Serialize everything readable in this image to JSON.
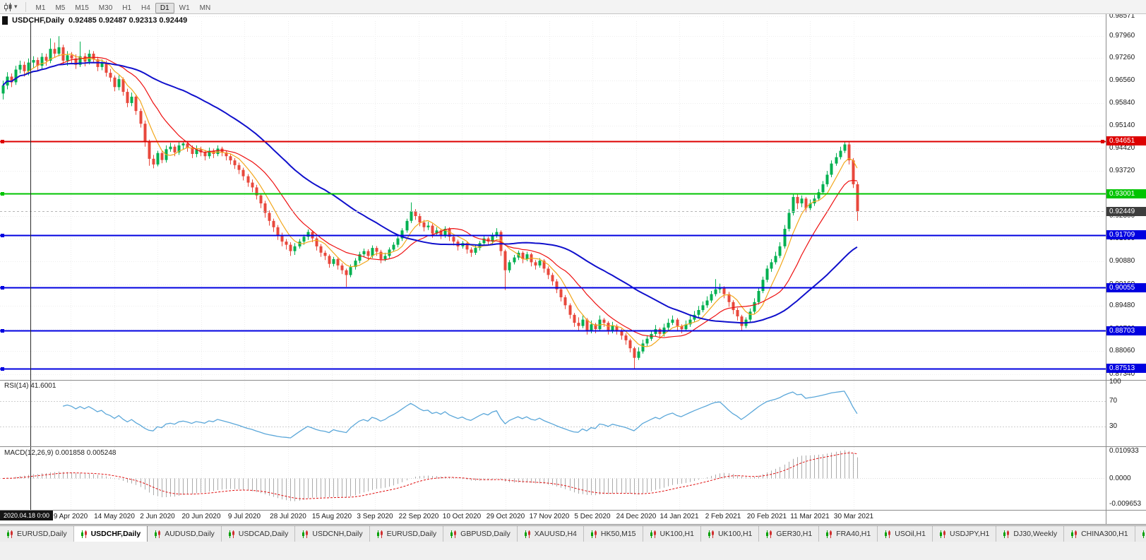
{
  "toolbar": {
    "caret_glyph": "▾",
    "timeframes": [
      "M1",
      "M5",
      "M15",
      "M30",
      "H1",
      "H4",
      "D1",
      "W1",
      "MN"
    ],
    "active_timeframe": "D1"
  },
  "chart": {
    "title_symbol": "USDCHF,Daily",
    "title_ohlc": "0.92485 0.92487 0.92313 0.92449"
  },
  "rsi": {
    "label": "RSI(14) 41.6001",
    "value": 41.6001,
    "period": 14,
    "axis_ticks": [
      "100",
      "70",
      "30"
    ],
    "levels": [
      70,
      30
    ],
    "line_color": "#5ba7d9"
  },
  "macd": {
    "label": "MACD(12,26,9) 0.001858 0.005248",
    "main_value": 0.001858,
    "signal_value": 0.005248,
    "axis_ticks": [
      "0.010933",
      "0.0000",
      "-0.009653"
    ],
    "histogram_color": "#ababab",
    "signal_color": "#e01010"
  },
  "vline": {
    "date_label": "2020.04.18 0:00"
  },
  "tabs": {
    "active_index": 1,
    "items": [
      "EURUSD,Daily",
      "USDCHF,Daily",
      "AUDUSD,Daily",
      "USDCAD,Daily",
      "USDCNH,Daily",
      "EURUSD,Daily",
      "GBPUSD,Daily",
      "XAUUSD,H4",
      "HK50,M15",
      "UK100,H1",
      "UK100,H1",
      "GER30,H1",
      "FRA40,H1",
      "USOil,H1",
      "USDJPY,H1",
      "DJ30,Weekly",
      "CHINA300,H1",
      "U"
    ]
  },
  "chart_data": {
    "type": "candlestick",
    "symbol": "USDCHF",
    "period": "Daily",
    "ohlc_display": {
      "open": "0.92485",
      "high": "0.92487",
      "low": "0.92313",
      "close": "0.92449"
    },
    "ylim": [
      0.872,
      0.9842
    ],
    "y_ticks": [
      "0.98571",
      "0.97960",
      "0.97260",
      "0.96560",
      "0.95840",
      "0.95140",
      "0.94420",
      "0.93720",
      "0.93020",
      "0.92300",
      "0.91600",
      "0.90880",
      "0.90160",
      "0.89480",
      "0.88760",
      "0.88060",
      "0.87340"
    ],
    "x_ticks": [
      "9 Apr 2020",
      "14 May 2020",
      "2 Jun 2020",
      "20 Jun 2020",
      "9 Jul 2020",
      "28 Jul 2020",
      "15 Aug 2020",
      "3 Sep 2020",
      "22 Sep 2020",
      "10 Oct 2020",
      "29 Oct 2020",
      "17 Nov 2020",
      "5 Dec 2020",
      "24 Dec 2020",
      "14 Jan 2021",
      "2 Feb 2021",
      "20 Feb 2021",
      "11 Mar 2021",
      "30 Mar 2021"
    ],
    "current_price": {
      "value": 0.92449,
      "label": "0.92449",
      "color": "#3d3d3d"
    },
    "horizontal_lines": [
      {
        "value": 0.94651,
        "label": "0.94651",
        "color": "#dd0000",
        "width": 2,
        "right_handle": true
      },
      {
        "value": 0.93001,
        "label": "0.93001",
        "color": "#00c400",
        "width": 2,
        "right_handle": false
      },
      {
        "value": 0.91709,
        "label": "0.91709",
        "color": "#0000e0",
        "width": 2,
        "right_handle": false
      },
      {
        "value": 0.90055,
        "label": "0.90055",
        "color": "#0000e0",
        "width": 2,
        "right_handle": false
      },
      {
        "value": 0.88703,
        "label": "0.88703",
        "color": "#0000e0",
        "width": 2,
        "right_handle": false
      },
      {
        "value": 0.87513,
        "label": "0.87513",
        "color": "#0000e0",
        "width": 2,
        "right_handle": false
      }
    ],
    "moving_averages": [
      {
        "name": "ma-fast",
        "period": 6,
        "color": "#f2a71b",
        "width": 1.2
      },
      {
        "name": "ma-mid",
        "period": 14,
        "color": "#ee1111",
        "width": 1.2
      },
      {
        "name": "ma-slow",
        "period": 40,
        "color": "#1010cc",
        "width": 2
      }
    ],
    "colors": {
      "up": "#00b050",
      "down": "#e8483c"
    },
    "candles": [
      [
        0.9615,
        0.9655,
        0.9596,
        0.964
      ],
      [
        0.964,
        0.9682,
        0.9628,
        0.9668
      ],
      [
        0.9668,
        0.9678,
        0.9635,
        0.965
      ],
      [
        0.965,
        0.9702,
        0.9642,
        0.969
      ],
      [
        0.969,
        0.9718,
        0.9678,
        0.9705
      ],
      [
        0.9705,
        0.9715,
        0.9668,
        0.9685
      ],
      [
        0.9685,
        0.9725,
        0.9672,
        0.9712
      ],
      [
        0.9712,
        0.9732,
        0.9695,
        0.972
      ],
      [
        0.972,
        0.9728,
        0.9688,
        0.9702
      ],
      [
        0.9702,
        0.9742,
        0.9692,
        0.973
      ],
      [
        0.973,
        0.974,
        0.9702,
        0.9718
      ],
      [
        0.9718,
        0.9788,
        0.971,
        0.9755
      ],
      [
        0.9755,
        0.9775,
        0.9728,
        0.974
      ],
      [
        0.974,
        0.9795,
        0.9732,
        0.976
      ],
      [
        0.976,
        0.9768,
        0.9705,
        0.9718
      ],
      [
        0.9718,
        0.9748,
        0.9702,
        0.9735
      ],
      [
        0.9735,
        0.9745,
        0.9708,
        0.9725
      ],
      [
        0.9725,
        0.9738,
        0.9692,
        0.9705
      ],
      [
        0.9705,
        0.9778,
        0.9698,
        0.9732
      ],
      [
        0.9732,
        0.9742,
        0.97,
        0.9715
      ],
      [
        0.9715,
        0.9752,
        0.9706,
        0.974
      ],
      [
        0.974,
        0.9748,
        0.971,
        0.9722
      ],
      [
        0.9722,
        0.973,
        0.9685,
        0.9698
      ],
      [
        0.9698,
        0.9722,
        0.9688,
        0.9712
      ],
      [
        0.9712,
        0.9718,
        0.9668,
        0.968
      ],
      [
        0.968,
        0.9692,
        0.9652,
        0.9665
      ],
      [
        0.9665,
        0.9672,
        0.9622,
        0.9635
      ],
      [
        0.9635,
        0.9672,
        0.9625,
        0.966
      ],
      [
        0.966,
        0.9665,
        0.9608,
        0.962
      ],
      [
        0.962,
        0.963,
        0.9572,
        0.9585
      ],
      [
        0.9585,
        0.9618,
        0.9575,
        0.9605
      ],
      [
        0.9605,
        0.9612,
        0.9548,
        0.956
      ],
      [
        0.956,
        0.9568,
        0.9508,
        0.952
      ],
      [
        0.952,
        0.953,
        0.9448,
        0.9462
      ],
      [
        0.9462,
        0.947,
        0.9388,
        0.941
      ],
      [
        0.941,
        0.9422,
        0.938,
        0.9392
      ],
      [
        0.9392,
        0.9435,
        0.9386,
        0.9428
      ],
      [
        0.9428,
        0.9436,
        0.9396,
        0.9406
      ],
      [
        0.9406,
        0.9452,
        0.9398,
        0.944
      ],
      [
        0.944,
        0.946,
        0.9432,
        0.9448
      ],
      [
        0.9448,
        0.9455,
        0.9418,
        0.943
      ],
      [
        0.943,
        0.9462,
        0.9422,
        0.9452
      ],
      [
        0.9452,
        0.9466,
        0.944,
        0.9458
      ],
      [
        0.9458,
        0.9464,
        0.9432,
        0.9445
      ],
      [
        0.9445,
        0.9452,
        0.9412,
        0.9425
      ],
      [
        0.9425,
        0.9452,
        0.9415,
        0.944
      ],
      [
        0.944,
        0.9448,
        0.9418,
        0.943
      ],
      [
        0.943,
        0.9438,
        0.9405,
        0.9418
      ],
      [
        0.9418,
        0.9445,
        0.941,
        0.9435
      ],
      [
        0.9435,
        0.9442,
        0.9412,
        0.9425
      ],
      [
        0.9425,
        0.9452,
        0.9418,
        0.9442
      ],
      [
        0.9442,
        0.9448,
        0.9418,
        0.943
      ],
      [
        0.943,
        0.9436,
        0.9405,
        0.9418
      ],
      [
        0.9418,
        0.9425,
        0.9392,
        0.9405
      ],
      [
        0.9405,
        0.9412,
        0.9378,
        0.939
      ],
      [
        0.939,
        0.9398,
        0.9362,
        0.9375
      ],
      [
        0.9375,
        0.9382,
        0.9342,
        0.9355
      ],
      [
        0.9355,
        0.9362,
        0.9322,
        0.9335
      ],
      [
        0.9335,
        0.9345,
        0.9305,
        0.932
      ],
      [
        0.932,
        0.9328,
        0.9282,
        0.9295
      ],
      [
        0.9295,
        0.9302,
        0.9255,
        0.927
      ],
      [
        0.927,
        0.9278,
        0.9225,
        0.924
      ],
      [
        0.924,
        0.9248,
        0.92,
        0.9215
      ],
      [
        0.9215,
        0.9222,
        0.918,
        0.9195
      ],
      [
        0.9195,
        0.9202,
        0.9155,
        0.917
      ],
      [
        0.917,
        0.9178,
        0.9135,
        0.915
      ],
      [
        0.915,
        0.9158,
        0.9125,
        0.914
      ],
      [
        0.914,
        0.9148,
        0.9105,
        0.912
      ],
      [
        0.912,
        0.9145,
        0.9108,
        0.9135
      ],
      [
        0.9135,
        0.9158,
        0.9128,
        0.915
      ],
      [
        0.915,
        0.9172,
        0.914,
        0.9165
      ],
      [
        0.9165,
        0.9188,
        0.9155,
        0.918
      ],
      [
        0.918,
        0.9185,
        0.9148,
        0.916
      ],
      [
        0.916,
        0.9165,
        0.9122,
        0.9135
      ],
      [
        0.9135,
        0.9142,
        0.9102,
        0.9115
      ],
      [
        0.9115,
        0.9122,
        0.9092,
        0.9105
      ],
      [
        0.9105,
        0.911,
        0.9068,
        0.908
      ],
      [
        0.908,
        0.9102,
        0.9072,
        0.9095
      ],
      [
        0.9095,
        0.91,
        0.9062,
        0.9075
      ],
      [
        0.9075,
        0.9082,
        0.9048,
        0.906
      ],
      [
        0.906,
        0.9065,
        0.9008,
        0.9045
      ],
      [
        0.9045,
        0.9078,
        0.9038,
        0.907
      ],
      [
        0.907,
        0.9098,
        0.9062,
        0.909
      ],
      [
        0.909,
        0.9118,
        0.9082,
        0.911
      ],
      [
        0.911,
        0.9128,
        0.91,
        0.912
      ],
      [
        0.912,
        0.9126,
        0.9092,
        0.9105
      ],
      [
        0.9105,
        0.9138,
        0.9098,
        0.913
      ],
      [
        0.913,
        0.9136,
        0.9105,
        0.9118
      ],
      [
        0.9118,
        0.9124,
        0.9082,
        0.9095
      ],
      [
        0.9095,
        0.9115,
        0.9088,
        0.9105
      ],
      [
        0.9105,
        0.9132,
        0.9098,
        0.9125
      ],
      [
        0.9125,
        0.9148,
        0.9118,
        0.914
      ],
      [
        0.914,
        0.9168,
        0.9132,
        0.916
      ],
      [
        0.916,
        0.9192,
        0.9152,
        0.9185
      ],
      [
        0.9185,
        0.9222,
        0.9178,
        0.9215
      ],
      [
        0.9215,
        0.9273,
        0.9208,
        0.9245
      ],
      [
        0.9245,
        0.9252,
        0.9218,
        0.923
      ],
      [
        0.923,
        0.9238,
        0.9198,
        0.921
      ],
      [
        0.921,
        0.9218,
        0.9182,
        0.9195
      ],
      [
        0.9195,
        0.9212,
        0.9186,
        0.92
      ],
      [
        0.92,
        0.9206,
        0.9162,
        0.9175
      ],
      [
        0.9175,
        0.9195,
        0.9168,
        0.9185
      ],
      [
        0.9185,
        0.919,
        0.9158,
        0.917
      ],
      [
        0.917,
        0.9198,
        0.9162,
        0.919
      ],
      [
        0.919,
        0.9195,
        0.9152,
        0.9165
      ],
      [
        0.9165,
        0.9172,
        0.9138,
        0.915
      ],
      [
        0.915,
        0.9156,
        0.9122,
        0.9135
      ],
      [
        0.9135,
        0.9152,
        0.9128,
        0.9145
      ],
      [
        0.9145,
        0.915,
        0.9112,
        0.9125
      ],
      [
        0.9125,
        0.9132,
        0.9102,
        0.9115
      ],
      [
        0.9115,
        0.9138,
        0.9108,
        0.913
      ],
      [
        0.913,
        0.9152,
        0.9122,
        0.9145
      ],
      [
        0.9145,
        0.9168,
        0.9138,
        0.916
      ],
      [
        0.916,
        0.9165,
        0.9138,
        0.915
      ],
      [
        0.915,
        0.9178,
        0.9142,
        0.917
      ],
      [
        0.917,
        0.9192,
        0.9162,
        0.918
      ],
      [
        0.918,
        0.9185,
        0.9105,
        0.912
      ],
      [
        0.912,
        0.9125,
        0.8998,
        0.906
      ],
      [
        0.906,
        0.9092,
        0.9052,
        0.9085
      ],
      [
        0.9085,
        0.9108,
        0.9078,
        0.91
      ],
      [
        0.91,
        0.9122,
        0.9092,
        0.9115
      ],
      [
        0.9115,
        0.912,
        0.9082,
        0.9095
      ],
      [
        0.9095,
        0.9118,
        0.9088,
        0.911
      ],
      [
        0.911,
        0.9115,
        0.9072,
        0.9085
      ],
      [
        0.9085,
        0.9092,
        0.9062,
        0.9075
      ],
      [
        0.9075,
        0.9098,
        0.9068,
        0.909
      ],
      [
        0.909,
        0.9095,
        0.9052,
        0.9065
      ],
      [
        0.9065,
        0.9072,
        0.9032,
        0.9045
      ],
      [
        0.9045,
        0.9052,
        0.9012,
        0.9025
      ],
      [
        0.9025,
        0.9032,
        0.8988,
        0.9
      ],
      [
        0.9,
        0.9006,
        0.8962,
        0.8975
      ],
      [
        0.8975,
        0.8982,
        0.8938,
        0.895
      ],
      [
        0.895,
        0.8956,
        0.8908,
        0.892
      ],
      [
        0.892,
        0.8926,
        0.8882,
        0.8895
      ],
      [
        0.8895,
        0.8912,
        0.8872,
        0.8885
      ],
      [
        0.8885,
        0.8918,
        0.8878,
        0.8905
      ],
      [
        0.8905,
        0.891,
        0.8858,
        0.887
      ],
      [
        0.887,
        0.8902,
        0.8862,
        0.889
      ],
      [
        0.889,
        0.8895,
        0.8862,
        0.8875
      ],
      [
        0.8875,
        0.8918,
        0.8868,
        0.8905
      ],
      [
        0.8905,
        0.891,
        0.8882,
        0.8895
      ],
      [
        0.8895,
        0.89,
        0.8858,
        0.887
      ],
      [
        0.887,
        0.8898,
        0.8862,
        0.8885
      ],
      [
        0.8885,
        0.889,
        0.8858,
        0.887
      ],
      [
        0.887,
        0.8876,
        0.8842,
        0.8855
      ],
      [
        0.8855,
        0.8862,
        0.8826,
        0.884
      ],
      [
        0.884,
        0.8845,
        0.8802,
        0.8815
      ],
      [
        0.8815,
        0.882,
        0.8752,
        0.8785
      ],
      [
        0.8785,
        0.8818,
        0.8778,
        0.8805
      ],
      [
        0.8805,
        0.8842,
        0.8798,
        0.883
      ],
      [
        0.883,
        0.8856,
        0.8822,
        0.8845
      ],
      [
        0.8845,
        0.8872,
        0.8838,
        0.886
      ],
      [
        0.886,
        0.8888,
        0.8852,
        0.8875
      ],
      [
        0.8875,
        0.888,
        0.8848,
        0.886
      ],
      [
        0.886,
        0.8892,
        0.8852,
        0.888
      ],
      [
        0.888,
        0.8908,
        0.8872,
        0.8895
      ],
      [
        0.8895,
        0.8918,
        0.8888,
        0.8905
      ],
      [
        0.8905,
        0.891,
        0.8872,
        0.8885
      ],
      [
        0.8885,
        0.889,
        0.8862,
        0.8875
      ],
      [
        0.8875,
        0.8902,
        0.8868,
        0.889
      ],
      [
        0.889,
        0.8918,
        0.8882,
        0.8905
      ],
      [
        0.8905,
        0.8932,
        0.8898,
        0.892
      ],
      [
        0.892,
        0.8948,
        0.8912,
        0.8935
      ],
      [
        0.8935,
        0.8962,
        0.8928,
        0.895
      ],
      [
        0.895,
        0.8978,
        0.8942,
        0.8965
      ],
      [
        0.8965,
        0.8995,
        0.8958,
        0.8985
      ],
      [
        0.8985,
        0.9032,
        0.8978,
        0.9
      ],
      [
        0.9,
        0.9018,
        0.8988,
        0.9005
      ],
      [
        0.9005,
        0.901,
        0.8972,
        0.8985
      ],
      [
        0.8985,
        0.8992,
        0.8945,
        0.896
      ],
      [
        0.896,
        0.8966,
        0.8922,
        0.8935
      ],
      [
        0.8935,
        0.8942,
        0.8902,
        0.8915
      ],
      [
        0.8915,
        0.892,
        0.8871,
        0.8885
      ],
      [
        0.8885,
        0.8912,
        0.8878,
        0.8905
      ],
      [
        0.8905,
        0.894,
        0.8898,
        0.893
      ],
      [
        0.893,
        0.8972,
        0.8922,
        0.896
      ],
      [
        0.896,
        0.9005,
        0.8952,
        0.8995
      ],
      [
        0.8995,
        0.904,
        0.8988,
        0.903
      ],
      [
        0.903,
        0.9075,
        0.9022,
        0.9065
      ],
      [
        0.9065,
        0.9095,
        0.9055,
        0.9085
      ],
      [
        0.9085,
        0.9118,
        0.9078,
        0.9105
      ],
      [
        0.9105,
        0.9148,
        0.9098,
        0.9135
      ],
      [
        0.9135,
        0.9202,
        0.9128,
        0.919
      ],
      [
        0.919,
        0.9252,
        0.9182,
        0.924
      ],
      [
        0.924,
        0.9302,
        0.9232,
        0.929
      ],
      [
        0.929,
        0.9298,
        0.9252,
        0.927
      ],
      [
        0.927,
        0.9295,
        0.9258,
        0.9285
      ],
      [
        0.9285,
        0.929,
        0.9242,
        0.9255
      ],
      [
        0.9255,
        0.9282,
        0.9248,
        0.927
      ],
      [
        0.927,
        0.9296,
        0.9262,
        0.9285
      ],
      [
        0.9285,
        0.9315,
        0.9278,
        0.9305
      ],
      [
        0.9305,
        0.934,
        0.9298,
        0.933
      ],
      [
        0.933,
        0.9372,
        0.9322,
        0.936
      ],
      [
        0.936,
        0.9405,
        0.9352,
        0.9395
      ],
      [
        0.9395,
        0.9428,
        0.9388,
        0.9415
      ],
      [
        0.9415,
        0.9448,
        0.9408,
        0.9435
      ],
      [
        0.9435,
        0.9466,
        0.9428,
        0.9455
      ],
      [
        0.9455,
        0.9462,
        0.9392,
        0.9405
      ],
      [
        0.9405,
        0.9412,
        0.9318,
        0.933
      ],
      [
        0.933,
        0.9338,
        0.9215,
        0.9245
      ]
    ]
  }
}
